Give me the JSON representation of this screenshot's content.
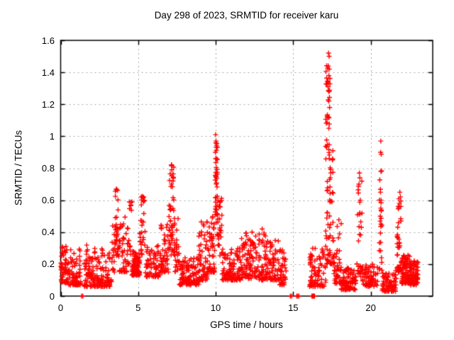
{
  "window": {
    "background": "#ffffff",
    "text_color": "#000000"
  },
  "chart_data": {
    "type": "scatter",
    "title": "Day 298 of 2023, SRMTID for receiver karu",
    "xlabel": "GPS time / hours",
    "ylabel": "SRMTID / TECUs",
    "xlim": [
      0,
      24
    ],
    "ylim": [
      0,
      1.6
    ],
    "x_ticks": [
      {
        "v": 0,
        "label": "0"
      },
      {
        "v": 5,
        "label": "5"
      },
      {
        "v": 10,
        "label": "10"
      },
      {
        "v": 15,
        "label": "15"
      },
      {
        "v": 20,
        "label": "20"
      }
    ],
    "y_ticks": [
      {
        "v": 0.0,
        "label": "0"
      },
      {
        "v": 0.2,
        "label": "0.2"
      },
      {
        "v": 0.4,
        "label": "0.4"
      },
      {
        "v": 0.6,
        "label": "0.6"
      },
      {
        "v": 0.8,
        "label": "0.8"
      },
      {
        "v": 1.0,
        "label": "1"
      },
      {
        "v": 1.2,
        "label": "1.2"
      },
      {
        "v": 1.4,
        "label": "1.4"
      },
      {
        "v": 1.6,
        "label": "1.6"
      }
    ],
    "grid": {
      "show": true,
      "style": "dashed",
      "color": "#a6a6a6"
    },
    "border_color": "#000000",
    "legend": "none",
    "marker": {
      "shape": "plus",
      "color": "#ff0000",
      "size": 7
    },
    "seed": 298,
    "segments_format": "[x_start_hours, x_end_hours, point_count, y_min_TECU, y_max_TECU, skew_power] — noisy scatter bands regenerated deterministically",
    "scatter_segments": [
      [
        0.0,
        0.45,
        50,
        0.08,
        0.33,
        2.0
      ],
      [
        0.45,
        1.3,
        80,
        0.07,
        0.3,
        2.0
      ],
      [
        1.5,
        2.2,
        70,
        0.06,
        0.32,
        2.0
      ],
      [
        2.2,
        3.3,
        95,
        0.06,
        0.3,
        2.0
      ],
      [
        3.3,
        3.5,
        15,
        0.15,
        0.45,
        1.5
      ],
      [
        3.5,
        3.72,
        32,
        0.25,
        0.68,
        1.2
      ],
      [
        3.72,
        4.3,
        40,
        0.15,
        0.5,
        1.8
      ],
      [
        4.3,
        4.6,
        22,
        0.2,
        0.6,
        1.3
      ],
      [
        4.6,
        5.1,
        85,
        0.13,
        0.28,
        1.6
      ],
      [
        5.1,
        5.45,
        30,
        0.25,
        0.63,
        1.2
      ],
      [
        5.45,
        6.45,
        70,
        0.12,
        0.32,
        1.8
      ],
      [
        6.45,
        6.95,
        45,
        0.15,
        0.46,
        1.6
      ],
      [
        6.95,
        7.3,
        48,
        0.25,
        0.83,
        1.25
      ],
      [
        7.3,
        7.65,
        30,
        0.15,
        0.5,
        1.7
      ],
      [
        7.65,
        8.9,
        110,
        0.07,
        0.24,
        1.9
      ],
      [
        8.9,
        9.45,
        55,
        0.1,
        0.48,
        2.0
      ],
      [
        9.45,
        9.95,
        55,
        0.15,
        0.5,
        1.8
      ],
      [
        9.97,
        10.12,
        38,
        0.38,
        1.0,
        1.1
      ],
      [
        10.12,
        10.4,
        28,
        0.25,
        0.65,
        1.4
      ],
      [
        10.4,
        11.6,
        105,
        0.1,
        0.3,
        1.9
      ],
      [
        11.6,
        12.75,
        95,
        0.11,
        0.4,
        2.0
      ],
      [
        12.75,
        13.45,
        60,
        0.1,
        0.4,
        2.0
      ],
      [
        13.45,
        14.1,
        55,
        0.1,
        0.35,
        1.9
      ],
      [
        14.1,
        14.55,
        40,
        0.07,
        0.3,
        1.9
      ],
      [
        16.05,
        17.1,
        85,
        0.06,
        0.32,
        1.8
      ],
      [
        17.1,
        17.45,
        75,
        0.2,
        1.45,
        1.6
      ],
      [
        17.45,
        17.6,
        18,
        0.2,
        0.95,
        1.4
      ],
      [
        17.6,
        18.1,
        45,
        0.08,
        0.5,
        2.2
      ],
      [
        18.1,
        19.05,
        90,
        0.04,
        0.18,
        1.7
      ],
      [
        19.1,
        19.45,
        28,
        0.12,
        0.72,
        1.5
      ],
      [
        19.45,
        20.45,
        70,
        0.06,
        0.2,
        1.7
      ],
      [
        20.55,
        20.75,
        22,
        0.15,
        0.92,
        1.5
      ],
      [
        20.75,
        21.65,
        75,
        0.03,
        0.16,
        1.7
      ],
      [
        21.7,
        22.0,
        40,
        0.15,
        0.62,
        1.5
      ],
      [
        22.0,
        22.55,
        85,
        0.08,
        0.26,
        1.7
      ],
      [
        22.55,
        23.05,
        80,
        0.07,
        0.22,
        1.7
      ]
    ],
    "notable_points": [
      [
        0.05,
        0.25
      ],
      [
        0.1,
        0.3
      ],
      [
        3.6,
        0.67
      ],
      [
        5.2,
        0.62
      ],
      [
        7.15,
        0.82
      ],
      [
        7.17,
        0.79
      ],
      [
        9.2,
        0.45
      ],
      [
        10.0,
        1.01
      ],
      [
        10.02,
        0.97
      ],
      [
        10.03,
        0.93
      ],
      [
        9.98,
        0.9
      ],
      [
        12.35,
        0.4
      ],
      [
        13.0,
        0.42
      ],
      [
        17.28,
        1.52
      ],
      [
        17.32,
        1.5
      ],
      [
        17.27,
        1.44
      ],
      [
        17.33,
        1.42
      ],
      [
        17.3,
        1.38
      ],
      [
        17.25,
        1.31
      ],
      [
        17.31,
        1.28
      ],
      [
        17.29,
        1.22
      ],
      [
        17.35,
        1.18
      ],
      [
        17.27,
        1.12
      ],
      [
        17.3,
        1.05
      ],
      [
        19.27,
        0.77
      ],
      [
        19.3,
        0.74
      ],
      [
        19.24,
        0.7
      ],
      [
        20.65,
        0.97
      ],
      [
        20.64,
        0.9
      ],
      [
        20.66,
        0.78
      ],
      [
        20.63,
        0.65
      ],
      [
        20.67,
        0.6
      ],
      [
        20.65,
        0.55
      ],
      [
        20.62,
        0.5
      ],
      [
        20.66,
        0.45
      ],
      [
        21.88,
        0.65
      ],
      [
        21.92,
        0.62
      ],
      [
        21.85,
        0.58
      ]
    ],
    "zero_points": [
      [
        1.35,
        0
      ],
      [
        1.43,
        0
      ],
      [
        14.82,
        0
      ],
      [
        14.9,
        0
      ],
      [
        15.23,
        0
      ],
      [
        15.3,
        0
      ],
      [
        15.37,
        0
      ],
      [
        16.2,
        0
      ],
      [
        16.25,
        0
      ],
      [
        16.3,
        0
      ],
      [
        16.33,
        0
      ],
      [
        16.38,
        0
      ]
    ]
  }
}
